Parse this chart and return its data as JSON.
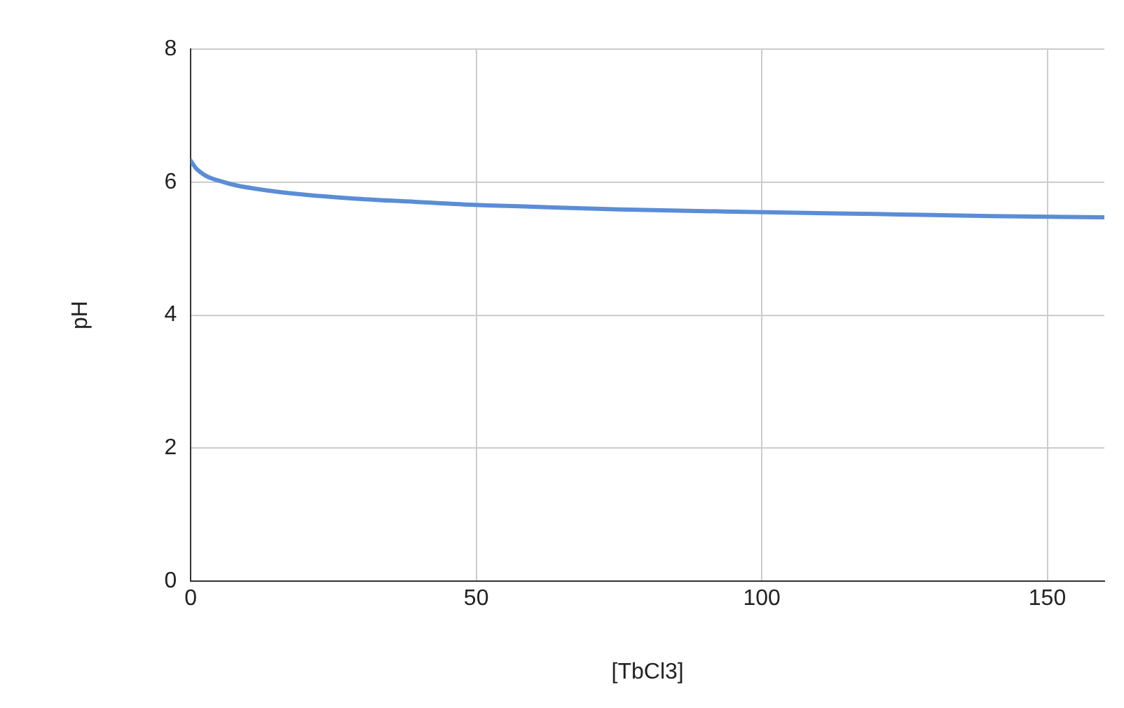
{
  "chart_data": {
    "type": "line",
    "xlabel": "[TbCl3]",
    "ylabel": "pH",
    "series": [
      {
        "color": "#5b8dd6",
        "x": [
          0,
          1,
          2,
          3,
          5,
          8,
          13,
          20,
          29,
          40,
          49,
          60,
          75,
          99,
          120,
          140,
          160
        ],
        "values": [
          6.32,
          6.2,
          6.13,
          6.08,
          6.02,
          5.95,
          5.88,
          5.81,
          5.75,
          5.7,
          5.66,
          5.63,
          5.59,
          5.55,
          5.52,
          5.49,
          5.47
        ]
      }
    ],
    "xlim": [
      0,
      160
    ],
    "xticks": [
      0,
      50,
      100,
      150
    ],
    "ylim": [
      0,
      8
    ],
    "yticks": [
      0,
      2,
      4,
      6,
      8
    ],
    "grid": true,
    "legend": false,
    "marker": "none",
    "line_style": "solid"
  }
}
